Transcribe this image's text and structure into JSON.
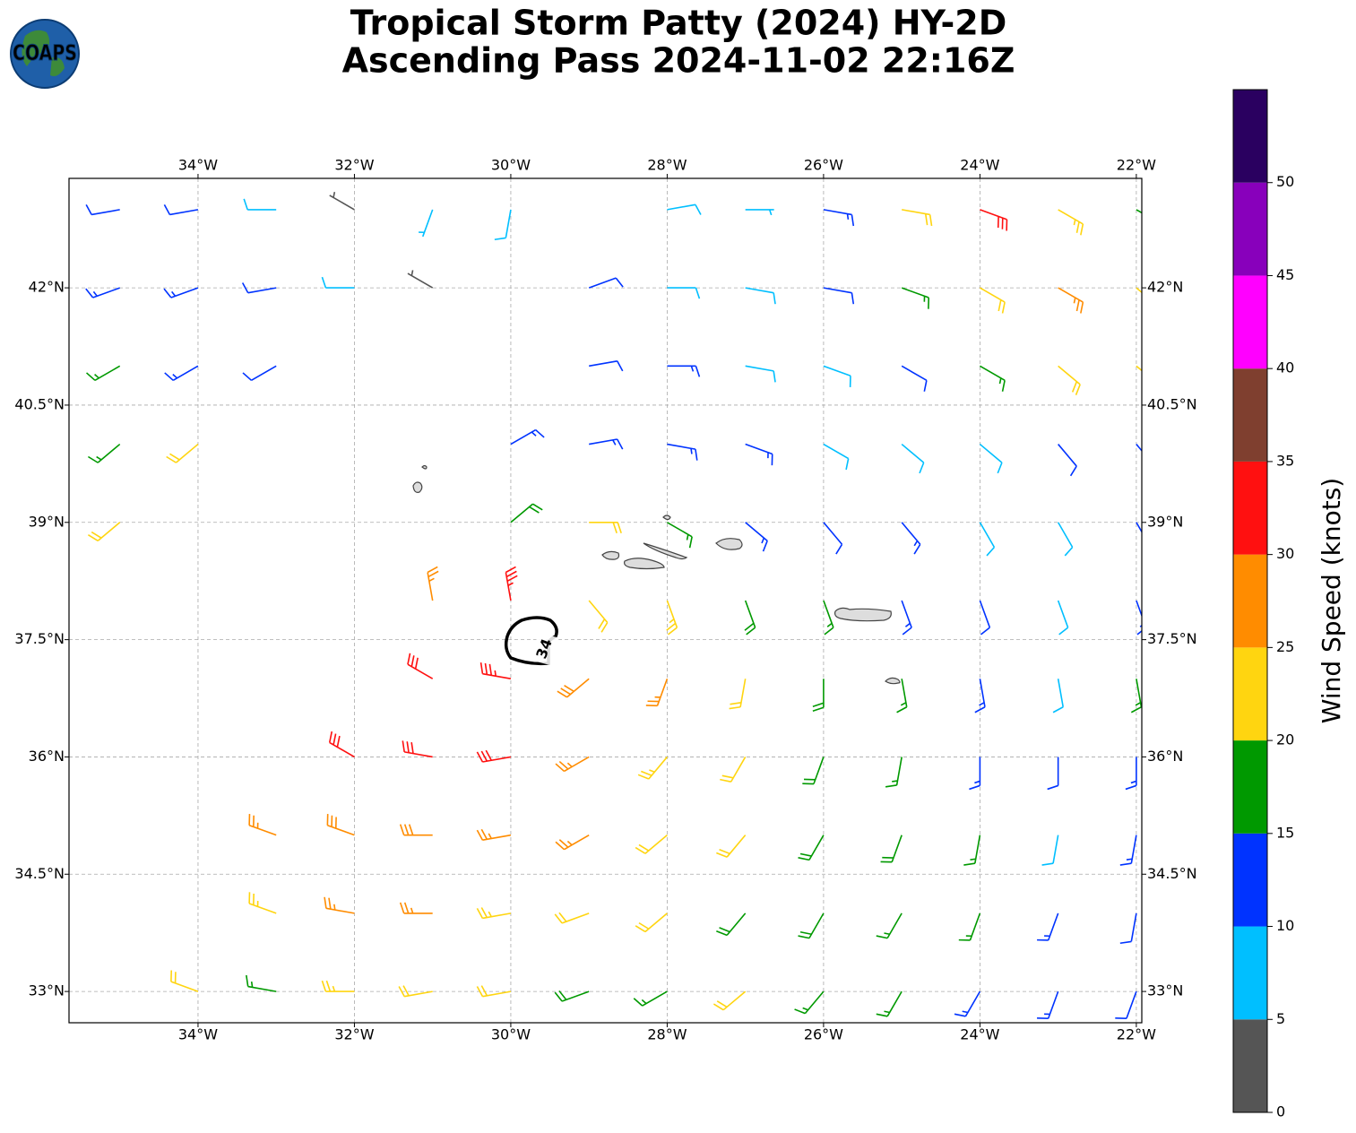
{
  "header": {
    "logo": "COAPS",
    "title": [
      "Tropical Storm Patty (2024) HY-2D",
      "Ascending Pass 2024-11-02 22:16Z"
    ]
  },
  "map": {
    "type": "wind-barb map",
    "xlim": [
      -35.65,
      -21.93
    ],
    "ylim": [
      32.6,
      43.4
    ],
    "xticks": [
      {
        "value": -34,
        "label": "34°W"
      },
      {
        "value": -32,
        "label": "32°W"
      },
      {
        "value": -30,
        "label": "30°W"
      },
      {
        "value": -28,
        "label": "28°W"
      },
      {
        "value": -26,
        "label": "26°W"
      },
      {
        "value": -24,
        "label": "24°W"
      },
      {
        "value": -22,
        "label": "22°W"
      }
    ],
    "yticks": [
      {
        "value": 33,
        "label": "33°N"
      },
      {
        "value": 34.5,
        "label": "34.5°N"
      },
      {
        "value": 36,
        "label": "36°N"
      },
      {
        "value": 37.5,
        "label": "37.5°N"
      },
      {
        "value": 39,
        "label": "39°N"
      },
      {
        "value": 40.5,
        "label": "40.5°N"
      },
      {
        "value": 42,
        "label": "42°N"
      }
    ],
    "grid": true,
    "contour_label": "34",
    "wind_barbs": [
      {
        "lat": 33,
        "lon": [
          -34,
          -33,
          -32,
          -31,
          -30,
          -29,
          -28,
          -27,
          -26,
          -25,
          -24,
          -23,
          -22
        ],
        "speed": [
          22,
          17,
          23,
          22,
          21,
          18,
          17,
          21,
          17,
          16,
          14,
          13,
          12
        ],
        "direction": [
          290,
          280,
          270,
          260,
          260,
          250,
          240,
          230,
          220,
          210,
          210,
          200,
          200
        ]
      },
      {
        "lat": 34,
        "lon": [
          -33,
          -32,
          -31,
          -30,
          -29,
          -28,
          -27,
          -26,
          -25,
          -24,
          -23,
          -22
        ],
        "speed": [
          23,
          27,
          26,
          24,
          22,
          21,
          18,
          19,
          17,
          15,
          13,
          12
        ],
        "direction": [
          290,
          280,
          270,
          260,
          250,
          230,
          220,
          210,
          210,
          200,
          200,
          190
        ]
      },
      {
        "lat": 35,
        "lon": [
          -33,
          -32,
          -31,
          -30,
          -29,
          -28,
          -27,
          -26,
          -25,
          -24,
          -23,
          -22
        ],
        "speed": [
          26,
          28,
          28,
          26,
          25,
          22,
          22,
          18,
          19,
          16,
          9,
          13
        ],
        "direction": [
          290,
          290,
          270,
          260,
          240,
          230,
          220,
          210,
          200,
          190,
          190,
          190
        ]
      },
      {
        "lat": 36,
        "lon": [
          -32,
          -31,
          -30,
          -29,
          -28,
          -27,
          -26,
          -25,
          -24,
          -23,
          -22
        ],
        "speed": [
          32,
          32,
          30,
          27,
          24,
          22,
          18,
          15,
          13,
          11,
          14
        ],
        "direction": [
          300,
          280,
          260,
          240,
          220,
          210,
          200,
          190,
          180,
          180,
          180
        ]
      },
      {
        "lat": 37,
        "lon": [
          -31,
          -30,
          -29,
          -28,
          -27,
          -26,
          -25,
          -24,
          -23,
          -22
        ],
        "speed": [
          31,
          33,
          28,
          26,
          22,
          18,
          16,
          13,
          8,
          16
        ],
        "direction": [
          300,
          280,
          230,
          200,
          190,
          180,
          170,
          170,
          170,
          170
        ]
      },
      {
        "lat": 38,
        "lon": [
          -31,
          -30,
          -29,
          -28,
          -27,
          -26,
          -25,
          -24,
          -23,
          -22
        ],
        "speed": [
          26,
          33,
          22,
          24,
          18,
          17,
          14,
          12,
          9,
          13
        ],
        "direction": [
          350,
          350,
          140,
          160,
          160,
          160,
          160,
          160,
          160,
          160
        ]
      },
      {
        "lat": 39,
        "lon": [
          -35,
          -30,
          -29,
          -28,
          -27,
          -26,
          -25,
          -24,
          -23,
          -22
        ],
        "speed": [
          21,
          18,
          21,
          17,
          14,
          12,
          13,
          8,
          9,
          13
        ],
        "direction": [
          230,
          50,
          90,
          120,
          130,
          140,
          140,
          150,
          150,
          150
        ]
      },
      {
        "lat": 40,
        "lon": [
          -35,
          -34,
          -30,
          -29,
          -28,
          -27,
          -26,
          -25,
          -24,
          -23,
          -22
        ],
        "speed": [
          17,
          22,
          14,
          13,
          14,
          13,
          9,
          8,
          8,
          12,
          11
        ],
        "direction": [
          230,
          230,
          60,
          80,
          100,
          110,
          120,
          130,
          130,
          140,
          140
        ]
      },
      {
        "lat": 41,
        "lon": [
          -35,
          -34,
          -33,
          -29,
          -28,
          -27,
          -26,
          -25,
          -24,
          -23,
          -22
        ],
        "speed": [
          16,
          14,
          12,
          12,
          13,
          9,
          8,
          10,
          16,
          22,
          24
        ],
        "direction": [
          240,
          240,
          240,
          80,
          90,
          100,
          110,
          120,
          120,
          130,
          130
        ]
      },
      {
        "lat": 42,
        "lon": [
          -35,
          -34,
          -33,
          -32,
          -31,
          -29,
          -28,
          -27,
          -26,
          -25,
          -24,
          -23,
          -22
        ],
        "speed": [
          14,
          13,
          12,
          8,
          3,
          12,
          9,
          8,
          12,
          17,
          22,
          27,
          22
        ],
        "direction": [
          250,
          250,
          260,
          270,
          300,
          70,
          90,
          100,
          100,
          110,
          120,
          120,
          130
        ]
      },
      {
        "lat": 43,
        "lon": [
          -35,
          -34,
          -33,
          -32,
          -31,
          -30,
          -28,
          -27,
          -26,
          -25,
          -24,
          -23,
          -22
        ],
        "speed": [
          12,
          12,
          9,
          4,
          7,
          8,
          8,
          7,
          13,
          22,
          30,
          24,
          18
        ],
        "direction": [
          260,
          260,
          270,
          300,
          200,
          190,
          80,
          90,
          100,
          100,
          110,
          120,
          120
        ]
      }
    ]
  },
  "colorbar": {
    "label": "Wind Speed (knots)",
    "lim": [
      0,
      55
    ],
    "ticks": [
      0,
      5,
      10,
      15,
      20,
      25,
      30,
      35,
      40,
      45,
      50
    ],
    "bounds": [
      0,
      5,
      10,
      15,
      20,
      25,
      30,
      35,
      40,
      45,
      50,
      55
    ],
    "colors": [
      "#555555",
      "#00bfff",
      "#0033ff",
      "#009900",
      "#ffd510",
      "#ff8c00",
      "#ff1010",
      "#7f3f2f",
      "#ff00ff",
      "#8800bb",
      "#2a0060"
    ]
  }
}
